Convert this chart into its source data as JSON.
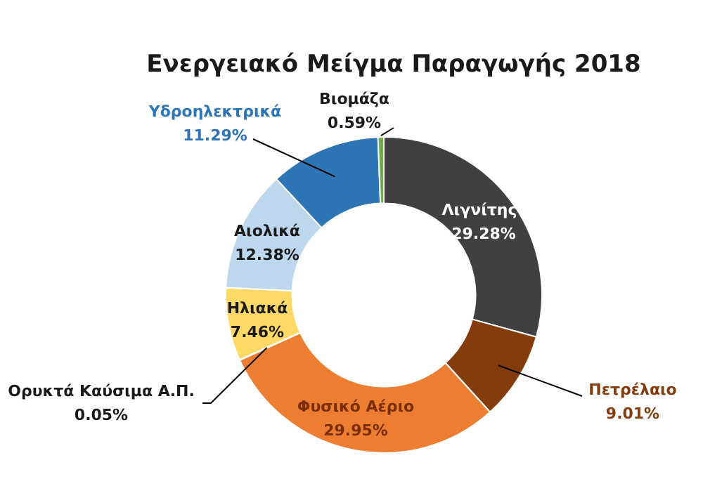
{
  "chart_data": {
    "type": "donut",
    "title": "Ενεργειακό Μείγμα Παραγωγής 2018",
    "categories": [
      "Λιγνίτης",
      "Πετρέλαιο",
      "Φυσικό Αέριο",
      "Ορυκτά Καύσιμα Α.Π.",
      "Ηλιακά",
      "Αιολικά",
      "Υδροηλεκτρικά",
      "Βιομάζα"
    ],
    "values": [
      29.28,
      9.01,
      29.95,
      0.05,
      7.46,
      12.38,
      11.29,
      0.59
    ],
    "value_labels": [
      "29.28%",
      "9.01%",
      "29.95%",
      "0.05%",
      "7.46%",
      "12.38%",
      "11.29%",
      "0.59%"
    ],
    "colors": [
      "#404040",
      "#843c0c",
      "#ed7d31",
      "#c55a11",
      "#ffd966",
      "#bdd7ee",
      "#2e75b6",
      "#70ad47"
    ],
    "legend": false
  }
}
